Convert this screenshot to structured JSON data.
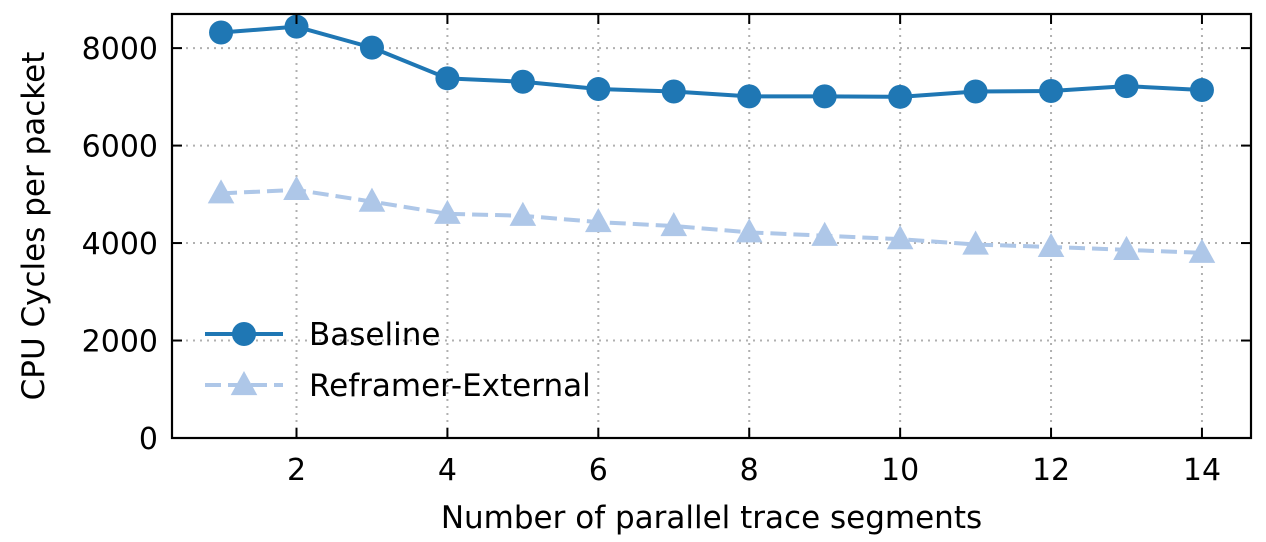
{
  "chart_data": {
    "type": "line",
    "title": "",
    "xlabel": "Number of parallel trace segments",
    "ylabel": "CPU Cycles per packet",
    "xlim": [
      0.35,
      14.65
    ],
    "ylim": [
      0,
      8700
    ],
    "xticks": [
      2,
      4,
      6,
      8,
      10,
      12,
      14
    ],
    "yticks": [
      0,
      2000,
      4000,
      6000,
      8000
    ],
    "grid": true,
    "legend_position": "lower-left",
    "x": [
      1,
      2,
      3,
      4,
      5,
      6,
      7,
      8,
      9,
      10,
      11,
      12,
      13,
      14
    ],
    "series": [
      {
        "name": "Baseline",
        "color": "#1f77b4",
        "marker": "circle",
        "line_style": "solid",
        "values": [
          8320,
          8440,
          8010,
          7380,
          7310,
          7160,
          7110,
          7010,
          7010,
          7000,
          7110,
          7120,
          7220,
          7140
        ]
      },
      {
        "name": "Reframer-External",
        "color": "#aec7e8",
        "marker": "triangle",
        "line_style": "dashed",
        "values": [
          5020,
          5090,
          4850,
          4600,
          4560,
          4430,
          4350,
          4220,
          4150,
          4080,
          3970,
          3920,
          3860,
          3800
        ]
      }
    ]
  }
}
